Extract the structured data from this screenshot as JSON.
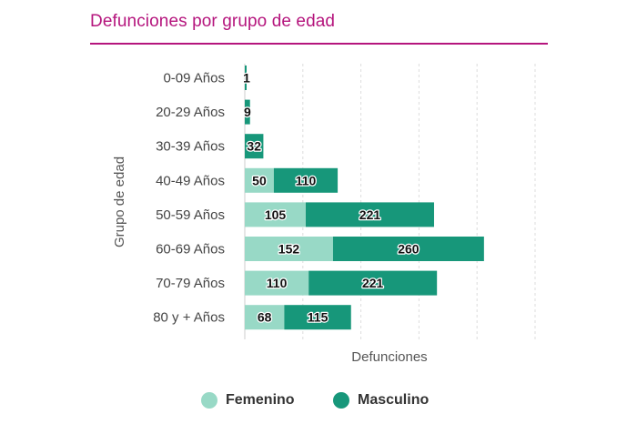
{
  "title": "Defunciones por grupo de edad",
  "chart_data": {
    "type": "bar",
    "orientation": "horizontal",
    "stacked": true,
    "categories": [
      "0-09 Años",
      "20-29 Años",
      "30-39 Años",
      "40-49 Años",
      "50-59 Años",
      "60-69 Años",
      "70-79 Años",
      "80 y + Años"
    ],
    "series": [
      {
        "name": "Femenino",
        "color": "#98d9c6",
        "values": [
          0,
          0,
          0,
          50,
          105,
          152,
          110,
          68
        ],
        "labels": [
          "",
          "",
          "",
          "50",
          "105",
          "152",
          "110",
          "68"
        ]
      },
      {
        "name": "Masculino",
        "color": "#17977a",
        "values": [
          1,
          9,
          32,
          110,
          221,
          260,
          221,
          115
        ],
        "labels": [
          "1",
          "9",
          "32",
          "110",
          "221",
          "260",
          "221",
          "115"
        ]
      }
    ],
    "xlabel": "Defunciones",
    "ylabel": "Grupo de edad",
    "xlim": [
      0,
      500
    ],
    "grid": true,
    "legend_position": "bottom"
  }
}
